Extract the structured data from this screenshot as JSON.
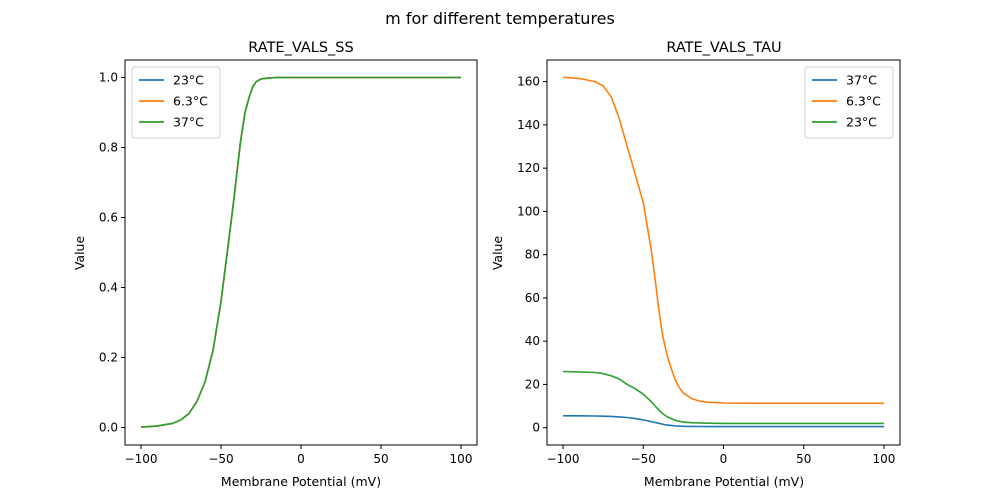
{
  "figure": {
    "suptitle": "m for different temperatures"
  },
  "chart_data": [
    {
      "type": "line",
      "title": "RATE_VALS_SS",
      "xlabel": "Membrane Potential (mV)",
      "ylabel": "Value",
      "xlim": [
        -110,
        110
      ],
      "ylim": [
        -0.05,
        1.05
      ],
      "xticks": [
        -100,
        -50,
        0,
        50,
        100
      ],
      "xtick_labels": [
        "−100",
        "−50",
        "0",
        "50",
        "100"
      ],
      "yticks": [
        0.0,
        0.2,
        0.4,
        0.6,
        0.8,
        1.0
      ],
      "ytick_labels": [
        "0.0",
        "0.2",
        "0.4",
        "0.6",
        "0.8",
        "1.0"
      ],
      "grid": false,
      "legend": "upper-left",
      "x": [
        -100,
        -90,
        -80,
        -75,
        -70,
        -65,
        -60,
        -55,
        -50,
        -45,
        -42,
        -40,
        -38,
        -35,
        -32,
        -30,
        -28,
        -25,
        -20,
        -15,
        -10,
        0,
        20,
        50,
        100
      ],
      "series": [
        {
          "name": "23°C",
          "color": "#1f77b4",
          "values": [
            0.001,
            0.004,
            0.012,
            0.022,
            0.04,
            0.075,
            0.13,
            0.22,
            0.36,
            0.54,
            0.65,
            0.73,
            0.81,
            0.9,
            0.95,
            0.975,
            0.988,
            0.996,
            0.999,
            1.0,
            1.0,
            1.0,
            1.0,
            1.0,
            1.0
          ]
        },
        {
          "name": "6.3°C",
          "color": "#ff7f0e",
          "values": [
            0.001,
            0.004,
            0.012,
            0.022,
            0.04,
            0.075,
            0.13,
            0.22,
            0.36,
            0.54,
            0.65,
            0.73,
            0.81,
            0.9,
            0.95,
            0.975,
            0.988,
            0.996,
            0.999,
            1.0,
            1.0,
            1.0,
            1.0,
            1.0,
            1.0
          ]
        },
        {
          "name": "37°C",
          "color": "#2ca02c",
          "values": [
            0.001,
            0.004,
            0.012,
            0.022,
            0.04,
            0.075,
            0.13,
            0.22,
            0.36,
            0.54,
            0.65,
            0.73,
            0.81,
            0.9,
            0.95,
            0.975,
            0.988,
            0.996,
            0.999,
            1.0,
            1.0,
            1.0,
            1.0,
            1.0,
            1.0
          ]
        }
      ]
    },
    {
      "type": "line",
      "title": "RATE_VALS_TAU",
      "xlabel": "Membrane Potential (mV)",
      "ylabel": "Value",
      "xlim": [
        -110,
        110
      ],
      "ylim": [
        -8,
        170
      ],
      "xticks": [
        -100,
        -50,
        0,
        50,
        100
      ],
      "xtick_labels": [
        "−100",
        "−50",
        "0",
        "50",
        "100"
      ],
      "yticks": [
        0,
        20,
        40,
        60,
        80,
        100,
        120,
        140,
        160
      ],
      "ytick_labels": [
        "0",
        "20",
        "40",
        "60",
        "80",
        "100",
        "120",
        "140",
        "160"
      ],
      "grid": false,
      "legend": "upper-right",
      "x": [
        -100,
        -90,
        -80,
        -75,
        -70,
        -65,
        -60,
        -55,
        -50,
        -45,
        -42,
        -40,
        -38,
        -35,
        -32,
        -30,
        -28,
        -25,
        -20,
        -15,
        -10,
        0,
        20,
        50,
        100
      ],
      "series": [
        {
          "name": "37°C",
          "color": "#1f77b4",
          "values": [
            5.5,
            5.5,
            5.4,
            5.3,
            5.2,
            5.0,
            4.7,
            4.2,
            3.6,
            2.8,
            2.3,
            2.0,
            1.6,
            1.2,
            0.95,
            0.8,
            0.72,
            0.65,
            0.58,
            0.55,
            0.53,
            0.52,
            0.52,
            0.52,
            0.52
          ]
        },
        {
          "name": "6.3°C",
          "color": "#ff7f0e",
          "values": [
            162,
            161.5,
            160,
            158,
            153,
            143,
            130,
            117,
            104,
            82,
            65,
            53,
            43,
            33,
            26,
            22,
            19,
            16,
            13.5,
            12.3,
            11.8,
            11.4,
            11.3,
            11.3,
            11.3
          ]
        },
        {
          "name": "23°C",
          "color": "#2ca02c",
          "values": [
            26,
            25.8,
            25.5,
            25,
            24,
            22.5,
            20,
            18,
            15.5,
            12,
            9.5,
            8.0,
            6.5,
            5.0,
            4.0,
            3.4,
            3.0,
            2.6,
            2.3,
            2.15,
            2.1,
            2.0,
            2.0,
            2.0,
            2.0
          ]
        }
      ]
    }
  ]
}
